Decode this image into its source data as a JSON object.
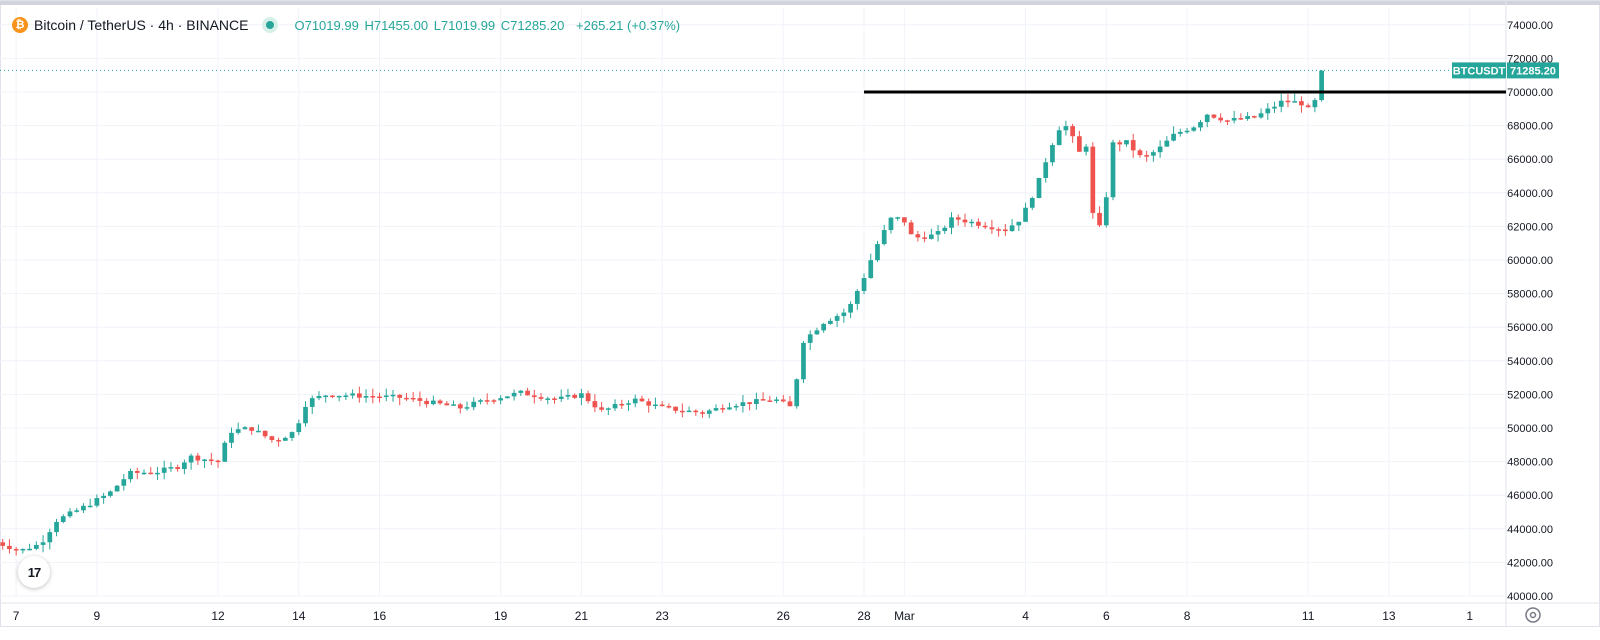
{
  "legend": {
    "symbol_title": "Bitcoin / TetherUS · 4h · BINANCE",
    "coin_glyph": "₿",
    "open": "O71019.99",
    "high": "H71455.00",
    "low": "L71019.99",
    "close": "C71285.20",
    "change": "+265.21 (+0.37%)"
  },
  "logo": {
    "text": "17"
  },
  "colors": {
    "up": "#26a69a",
    "down": "#ef5350",
    "horizontal_line": "#000000",
    "grid": "#f0f3fa",
    "axis_text": "#131722",
    "price_tag_bg": "#26a69a"
  },
  "chart_data": {
    "type": "candlestick",
    "title": "",
    "xlabel": "",
    "ylabel": "",
    "interval": "4h",
    "ylim": [
      40000,
      75000
    ],
    "y_ticks": [
      "74000.00",
      "72000.00",
      "70000.00",
      "68000.00",
      "66000.00",
      "64000.00",
      "62000.00",
      "60000.00",
      "58000.00",
      "56000.00",
      "54000.00",
      "52000.00",
      "50000.00",
      "48000.00",
      "46000.00",
      "44000.00",
      "42000.00",
      "40000.00"
    ],
    "x_ticks": [
      {
        "label": "7",
        "day": 7
      },
      {
        "label": "9",
        "day": 9
      },
      {
        "label": "12",
        "day": 12
      },
      {
        "label": "14",
        "day": 14
      },
      {
        "label": "16",
        "day": 16
      },
      {
        "label": "19",
        "day": 19
      },
      {
        "label": "21",
        "day": 21
      },
      {
        "label": "23",
        "day": 23
      },
      {
        "label": "26",
        "day": 26
      },
      {
        "label": "28",
        "day": 28
      },
      {
        "label": "Mar",
        "day": 29
      },
      {
        "label": "4",
        "day": 32
      },
      {
        "label": "6",
        "day": 34
      },
      {
        "label": "8",
        "day": 36
      },
      {
        "label": "11",
        "day": 39
      },
      {
        "label": "13",
        "day": 41
      },
      {
        "label": "1",
        "day": 43
      }
    ],
    "horizontal_line": {
      "price": 70000,
      "from_day": 28
    },
    "last_price": {
      "symbol": "BTCUSDT",
      "value": "71285.20",
      "price": 71285.2
    },
    "grid": true,
    "legend": "top-left",
    "keyframes": [
      {
        "day": 6.5,
        "price": 43200
      },
      {
        "day": 7.1,
        "price": 42700
      },
      {
        "day": 7.6,
        "price": 43100
      },
      {
        "day": 8.0,
        "price": 44500
      },
      {
        "day": 8.6,
        "price": 45200
      },
      {
        "day": 9.3,
        "price": 46100
      },
      {
        "day": 9.8,
        "price": 47300
      },
      {
        "day": 10.5,
        "price": 47400
      },
      {
        "day": 11.0,
        "price": 47700
      },
      {
        "day": 11.3,
        "price": 48300
      },
      {
        "day": 12.0,
        "price": 48000
      },
      {
        "day": 12.3,
        "price": 49800
      },
      {
        "day": 12.8,
        "price": 50000
      },
      {
        "day": 13.4,
        "price": 49200
      },
      {
        "day": 13.9,
        "price": 49800
      },
      {
        "day": 14.2,
        "price": 51600
      },
      {
        "day": 14.7,
        "price": 52000
      },
      {
        "day": 15.7,
        "price": 51900
      },
      {
        "day": 16.6,
        "price": 51800
      },
      {
        "day": 17.3,
        "price": 51500
      },
      {
        "day": 18.0,
        "price": 51200
      },
      {
        "day": 18.7,
        "price": 51700
      },
      {
        "day": 19.5,
        "price": 52100
      },
      {
        "day": 20.4,
        "price": 51700
      },
      {
        "day": 21.0,
        "price": 52000
      },
      {
        "day": 21.5,
        "price": 51000
      },
      {
        "day": 22.3,
        "price": 51700
      },
      {
        "day": 23.0,
        "price": 51200
      },
      {
        "day": 24.0,
        "price": 50900
      },
      {
        "day": 24.7,
        "price": 51400
      },
      {
        "day": 25.8,
        "price": 51700
      },
      {
        "day": 26.2,
        "price": 51200
      },
      {
        "day": 26.5,
        "price": 55200
      },
      {
        "day": 27.0,
        "price": 56300
      },
      {
        "day": 27.6,
        "price": 57000
      },
      {
        "day": 28.0,
        "price": 59000
      },
      {
        "day": 28.3,
        "price": 60800
      },
      {
        "day": 28.7,
        "price": 62600
      },
      {
        "day": 29.0,
        "price": 62300
      },
      {
        "day": 29.2,
        "price": 61300
      },
      {
        "day": 29.8,
        "price": 61500
      },
      {
        "day": 30.2,
        "price": 62500
      },
      {
        "day": 31.5,
        "price": 61800
      },
      {
        "day": 31.9,
        "price": 62500
      },
      {
        "day": 32.3,
        "price": 64500
      },
      {
        "day": 32.6,
        "price": 66600
      },
      {
        "day": 32.9,
        "price": 68200
      },
      {
        "day": 33.1,
        "price": 67700
      },
      {
        "day": 33.3,
        "price": 66300
      },
      {
        "day": 33.55,
        "price": 67000
      },
      {
        "day": 33.7,
        "price": 61500
      },
      {
        "day": 33.95,
        "price": 62300
      },
      {
        "day": 34.1,
        "price": 66900
      },
      {
        "day": 34.5,
        "price": 67000
      },
      {
        "day": 34.9,
        "price": 66000
      },
      {
        "day": 35.3,
        "price": 66600
      },
      {
        "day": 35.7,
        "price": 67500
      },
      {
        "day": 36.2,
        "price": 68000
      },
      {
        "day": 36.5,
        "price": 68700
      },
      {
        "day": 37.0,
        "price": 68300
      },
      {
        "day": 37.7,
        "price": 68500
      },
      {
        "day": 38.4,
        "price": 69500
      },
      {
        "day": 38.9,
        "price": 69300
      },
      {
        "day": 39.1,
        "price": 68600
      },
      {
        "day": 39.3,
        "price": 71100
      },
      {
        "day": 39.45,
        "price": 71285
      }
    ]
  }
}
